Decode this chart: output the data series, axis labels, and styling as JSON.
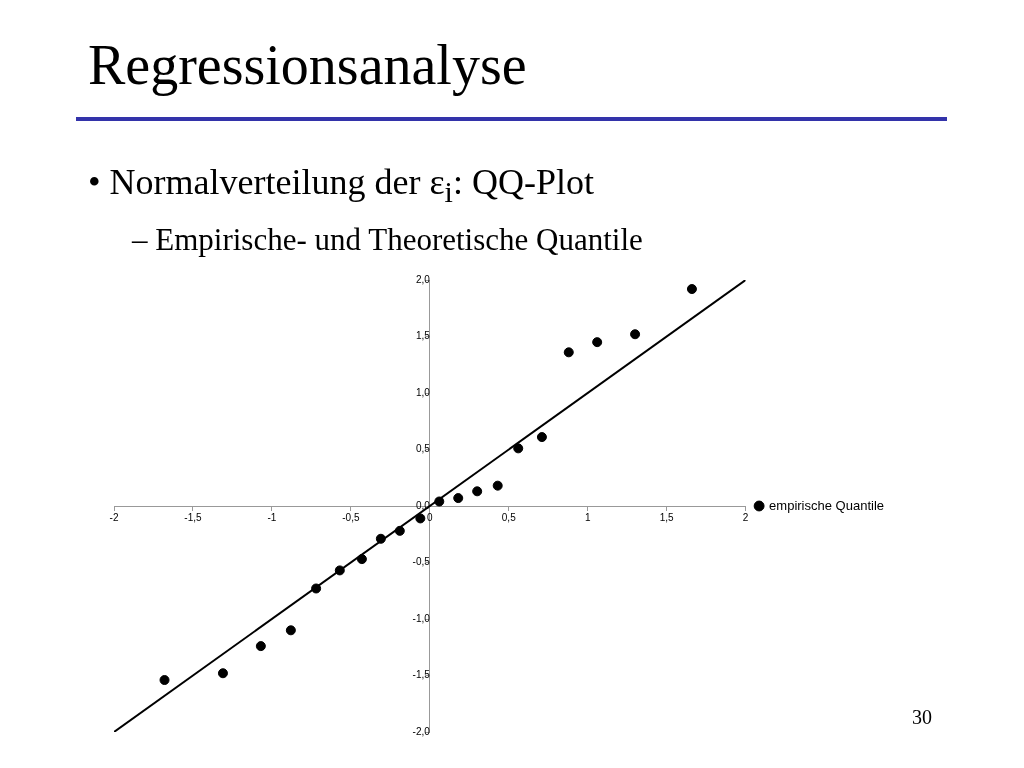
{
  "chart_data": {
    "type": "scatter",
    "title": "Regressionsanalyse",
    "subtitle": "• Normalverteilung der ε$_{i}$: QQ-Plot",
    "annotations": [
      "– Empirische- und Theoretische Quantile",
      "30"
    ],
    "series": [
      {
        "name": "empirische Quantile",
        "type": "scatter",
        "color": "#000000",
        "marker": "circle",
        "x": [
          -1.68,
          -1.31,
          -1.07,
          -0.88,
          -0.72,
          -0.57,
          -0.43,
          -0.31,
          -0.19,
          -0.06,
          0.06,
          0.18,
          0.3,
          0.43,
          0.56,
          0.71,
          0.88,
          1.06,
          1.3,
          1.66
        ],
        "values": [
          -1.54,
          -1.48,
          -1.24,
          -1.1,
          -0.73,
          -0.57,
          -0.47,
          -0.29,
          -0.22,
          -0.11,
          0.04,
          0.07,
          0.13,
          0.18,
          0.51,
          0.61,
          1.36,
          1.45,
          1.52,
          1.92
        ]
      },
      {
        "type": "line",
        "color": "#000000",
        "marker": "none",
        "line_style": "solid",
        "x": [
          -2,
          2
        ],
        "values": [
          -2,
          2
        ]
      }
    ],
    "xlim": [
      -2,
      2
    ],
    "xticks": [
      -2,
      {
        "value": -1.5,
        "label": "-1,5"
      },
      -1,
      {
        "value": -0.5,
        "label": "-0,5"
      },
      0,
      {
        "value": 0.5,
        "label": "0,5"
      },
      1,
      {
        "value": 1.5,
        "label": "1,5"
      },
      2
    ],
    "ylim": [
      -2,
      2
    ],
    "yticks": [
      {
        "value": -2,
        "label": "-2,0"
      },
      {
        "value": -1.5,
        "label": "-1,5"
      },
      {
        "value": -1,
        "label": "-1,0"
      },
      {
        "value": -0.5,
        "label": "-0,5"
      },
      {
        "value": 0,
        "label": "0,0"
      },
      {
        "value": 0.5,
        "label": "0,5"
      },
      {
        "value": 1,
        "label": "1,0"
      },
      {
        "value": 1.5,
        "label": "1,5"
      },
      {
        "value": 2,
        "label": "2,0"
      }
    ],
    "grid": false,
    "legend": "right"
  }
}
